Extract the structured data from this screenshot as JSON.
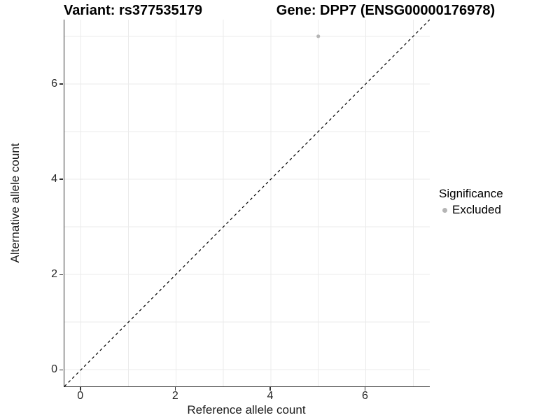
{
  "titles": {
    "left": "Variant: rs377535179",
    "right": "Gene: DPP7 (ENSG00000176978)"
  },
  "axes": {
    "x": {
      "label": "Reference allele count",
      "tick_labels": [
        "0",
        "2",
        "4",
        "6"
      ]
    },
    "y": {
      "label": "Alternative allele count",
      "tick_labels": [
        "0",
        "2",
        "4",
        "6"
      ]
    }
  },
  "legend": {
    "title": "Significance",
    "items": [
      {
        "label": "Excluded",
        "color": "#b5b5b5"
      }
    ]
  },
  "colors": {
    "background": "#ffffff",
    "grid": "#ebebeb",
    "axis_line": "#333333",
    "tick_text": "#262626",
    "point": "#b5b5b5",
    "dashed_line": "#000000"
  },
  "chart_data": {
    "type": "scatter",
    "title": "Variant: rs377535179 — Gene: DPP7 (ENSG00000176978)",
    "xlabel": "Reference allele count",
    "ylabel": "Alternative allele count",
    "xlim": [
      -0.35,
      7.35
    ],
    "ylim": [
      -0.35,
      7.35
    ],
    "x_ticks": [
      0,
      2,
      4,
      6
    ],
    "y_ticks": [
      0,
      2,
      4,
      6
    ],
    "x_grid": [
      0,
      1,
      2,
      3,
      4,
      5,
      6,
      7
    ],
    "y_grid": [
      0,
      1,
      2,
      3,
      4,
      5,
      6,
      7
    ],
    "grid": true,
    "legend_position": "right",
    "series": [
      {
        "name": "Excluded",
        "color": "#b5b5b5",
        "points": [
          {
            "x": 5,
            "y": 7
          }
        ],
        "point_radius_px": 2.6
      }
    ],
    "reference_line": {
      "type": "identity y=x",
      "style": "dashed",
      "color": "#000000"
    }
  }
}
